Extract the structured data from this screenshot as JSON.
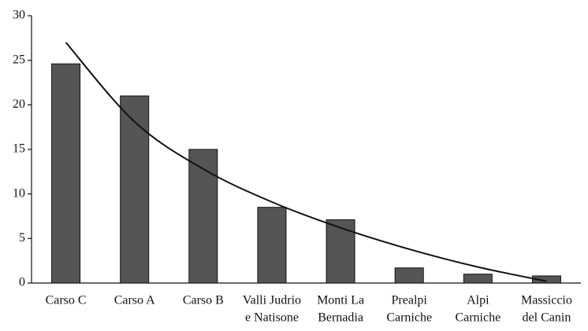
{
  "chart_data": {
    "type": "bar",
    "categories": [
      [
        "Carso C"
      ],
      [
        "Carso A"
      ],
      [
        "Carso B"
      ],
      [
        "Valli Judrio",
        "e Natisone"
      ],
      [
        "Monti La",
        "Bernadia"
      ],
      [
        "Prealpi",
        "Carniche"
      ],
      [
        "Alpi",
        "Carniche"
      ],
      [
        "Massiccio",
        "del Canin"
      ]
    ],
    "values": [
      24.6,
      21,
      15,
      8.5,
      7.1,
      1.7,
      1.0,
      0.8
    ],
    "color": "#555555",
    "trend": {
      "values": [
        27,
        18.1,
        12.8,
        9.1,
        6.2,
        3.8,
        1.8,
        0.2
      ],
      "color": "#111111"
    },
    "ylim": [
      0,
      30
    ],
    "yticks": [
      0,
      5,
      10,
      15,
      20,
      25,
      30
    ],
    "grid": false
  }
}
